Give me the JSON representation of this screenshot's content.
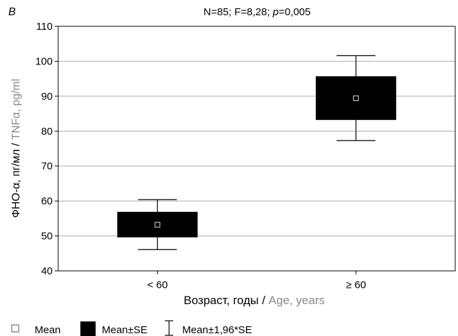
{
  "chart_data": {
    "type": "box",
    "panel_label": "B",
    "title": {
      "prefix": "N=85; F=8,28; ",
      "p_symbol": "p",
      "suffix": "=0,005"
    },
    "xlabel": {
      "ru": "Возраст, годы",
      "sep": " / ",
      "en": "Age, years"
    },
    "ylabel": {
      "ru": "ФНО-α, пг/мл",
      "sep": " / ",
      "en": "TNFα, pg/ml"
    },
    "ylim": [
      40,
      110
    ],
    "yticks": [
      40,
      50,
      60,
      70,
      80,
      90,
      100,
      110
    ],
    "grid": true,
    "categories": [
      "< 60",
      "≥ 60"
    ],
    "mean": [
      53.2,
      89.4
    ],
    "mean_minus_se": [
      49.6,
      83.2
    ],
    "mean_plus_se": [
      56.9,
      95.7
    ],
    "mean_minus_1_96se": [
      46.1,
      77.3
    ],
    "mean_plus_1_96se": [
      60.4,
      101.6
    ],
    "legend": {
      "placement": "bottom",
      "items": [
        {
          "label": "Mean",
          "symbol": "hollow-square"
        },
        {
          "label": "Mean±SE",
          "symbol": "filled-box"
        },
        {
          "label": "Mean±1,96*SE",
          "symbol": "whisker"
        }
      ]
    },
    "colors": {
      "box": "#000000",
      "grid": "#b4b4b4",
      "axis": "#000000",
      "english_text": "#8a8a8a"
    }
  }
}
